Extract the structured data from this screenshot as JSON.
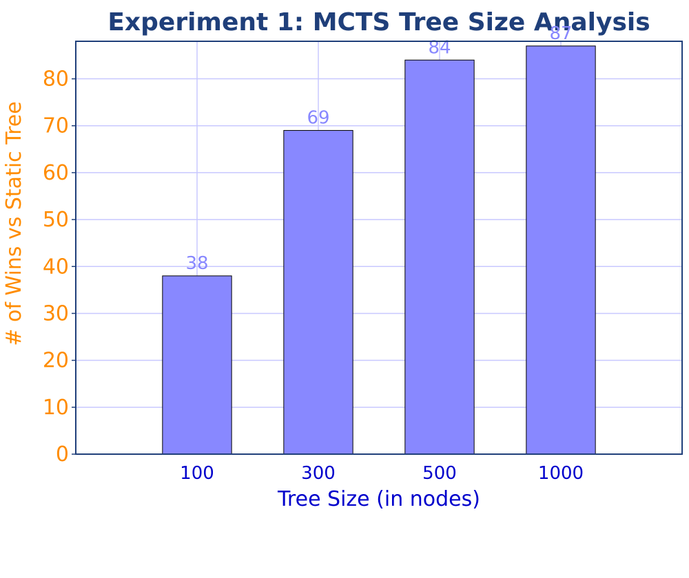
{
  "chart_data": {
    "type": "bar",
    "title": "Experiment 1: MCTS Tree Size Analysis",
    "xlabel": "Tree Size (in nodes)",
    "ylabel": "# of Wins vs Static Tree",
    "categories": [
      "100",
      "300",
      "500",
      "1000"
    ],
    "values": [
      38,
      69,
      84,
      87
    ],
    "data_labels": [
      "38",
      "69",
      "84",
      "87"
    ],
    "ylim": [
      0,
      88
    ],
    "yticks": [
      0,
      10,
      20,
      30,
      40,
      50,
      60,
      70,
      80
    ],
    "ytick_labels": [
      "0",
      "10",
      "20",
      "30",
      "40",
      "50",
      "60",
      "70",
      "80"
    ],
    "grid": true,
    "legend": "none"
  },
  "colors": {
    "title": "#1f3f7a",
    "bar_fill": "#8888ff",
    "bar_stroke": "#000000",
    "grid": "#c8c8ff",
    "y_tick_text": "#ff8c00",
    "y_label_text": "#ff8c00",
    "x_tick_text": "#0000cc",
    "x_label_text": "#0000cc",
    "data_label_text": "#8888ff",
    "frame": "#1f3f7a"
  }
}
